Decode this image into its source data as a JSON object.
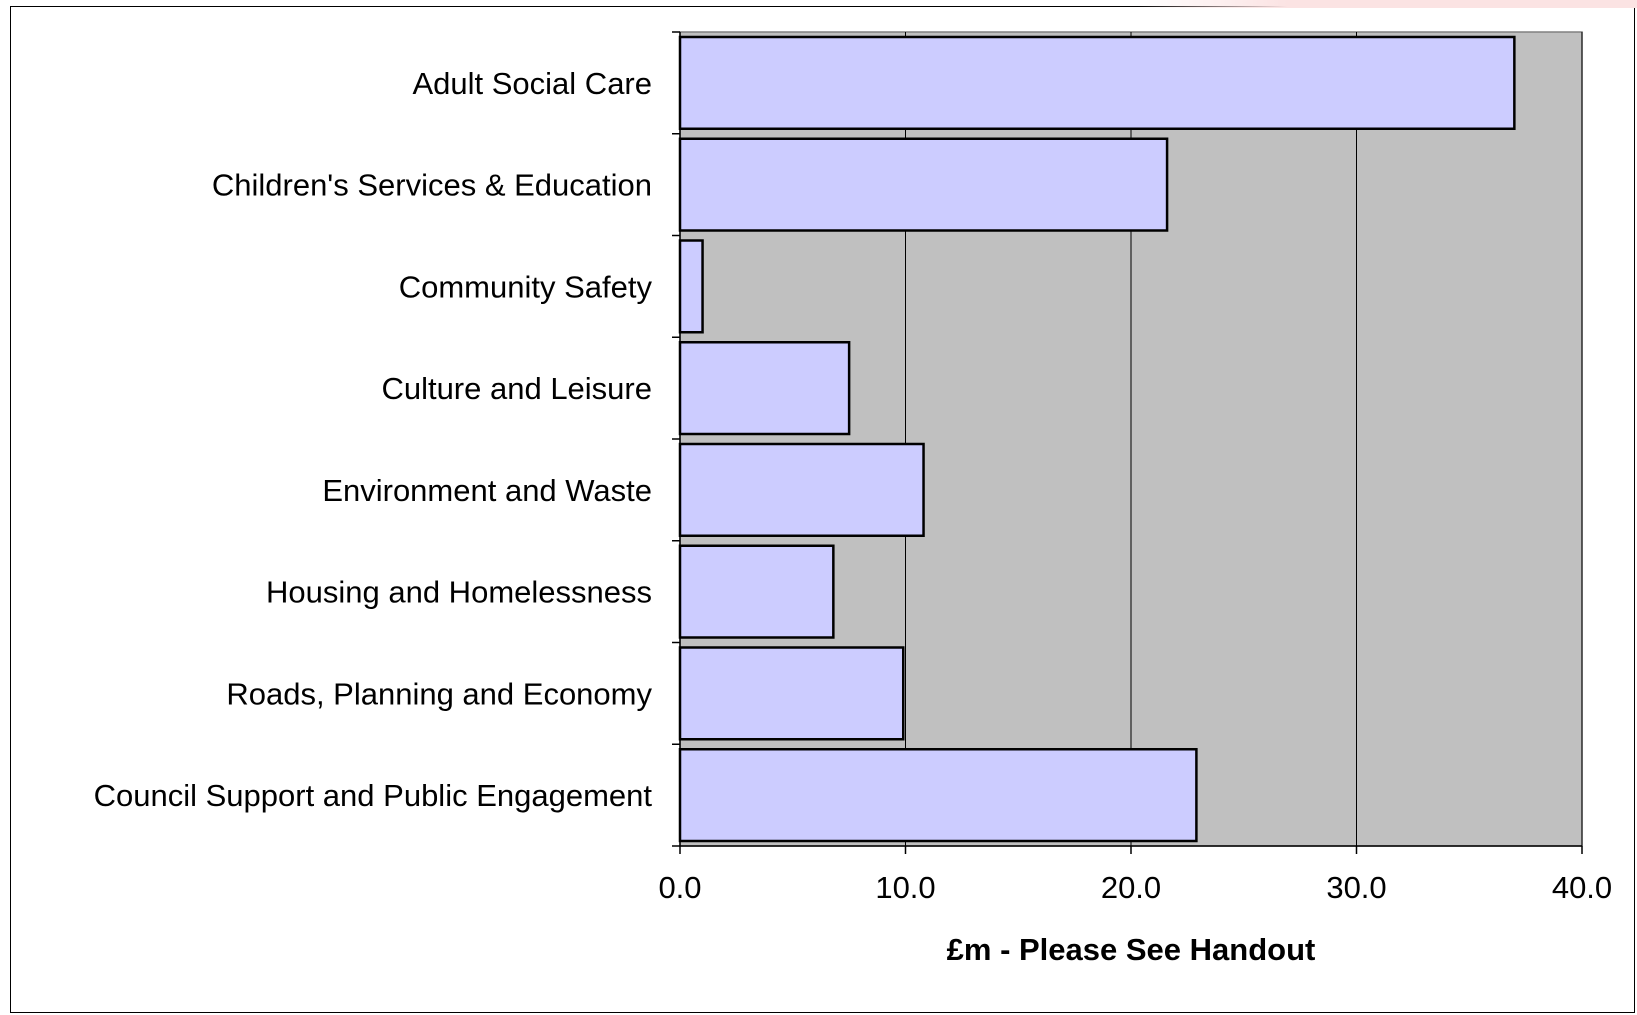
{
  "colors": {
    "plot_background": "#c0c0c0",
    "bar_fill": "#ccccff",
    "bar_stroke": "#000000",
    "gridline": "#000000",
    "corner_accent": "#fbe3e3"
  },
  "chart_data": {
    "type": "bar",
    "orientation": "horizontal",
    "categories": [
      "Adult Social Care",
      "Children's Services & Education",
      "Community Safety",
      "Culture and Leisure",
      "Environment and Waste",
      "Housing and Homelessness",
      "Roads, Planning and Economy",
      "Council Support and Public Engagement"
    ],
    "values": [
      37.0,
      21.6,
      1.0,
      7.5,
      10.8,
      6.8,
      9.9,
      22.9
    ],
    "xlabel": "£m - Please See Handout",
    "xlim": [
      0,
      40
    ],
    "x_ticks": [
      "0.0",
      "10.0",
      "20.0",
      "30.0",
      "40.0"
    ],
    "x_tick_values": [
      0,
      10,
      20,
      30,
      40
    ],
    "grid": "vertical major gridlines",
    "legend": "none"
  }
}
